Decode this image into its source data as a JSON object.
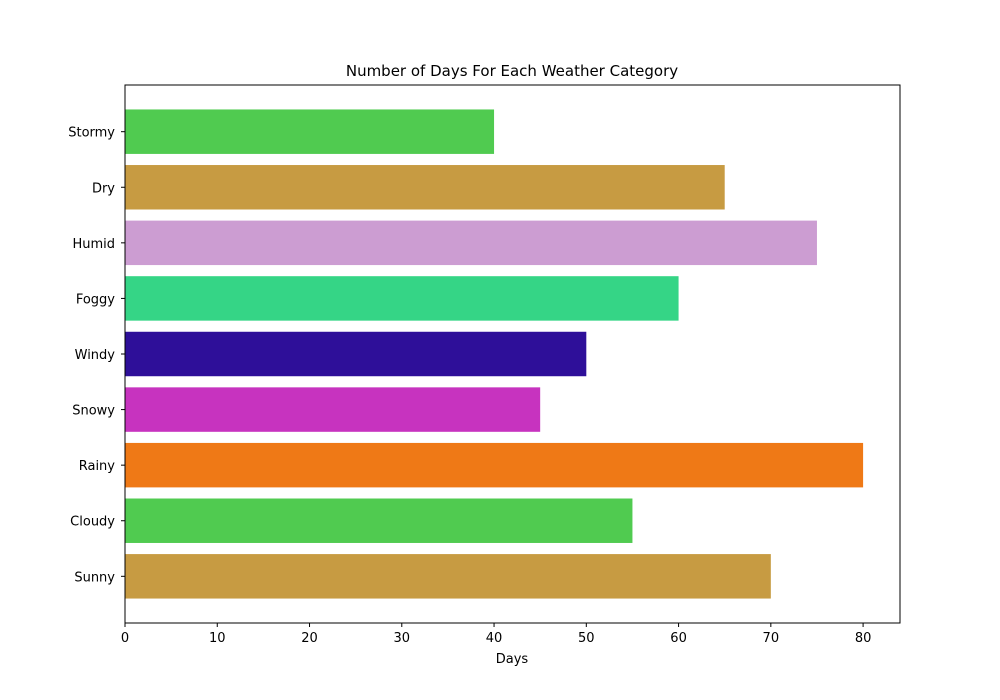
{
  "chart_data": {
    "type": "bar",
    "orientation": "horizontal",
    "title": "Number of Days For Each Weather Category",
    "xlabel": "Days",
    "ylabel": "",
    "categories": [
      "Sunny",
      "Cloudy",
      "Rainy",
      "Snowy",
      "Windy",
      "Foggy",
      "Humid",
      "Dry",
      "Stormy"
    ],
    "values": [
      70,
      55,
      80,
      45,
      50,
      60,
      75,
      65,
      40
    ],
    "colors": [
      "#c79b42",
      "#50cb50",
      "#ef7916",
      "#c733bf",
      "#2e0f99",
      "#35d586",
      "#cc9dd2",
      "#c79b42",
      "#50cb50"
    ],
    "xlim": [
      0,
      84
    ],
    "xticks": [
      0,
      10,
      20,
      30,
      40,
      50,
      60,
      70,
      80
    ],
    "grid": false,
    "legend": "none"
  }
}
